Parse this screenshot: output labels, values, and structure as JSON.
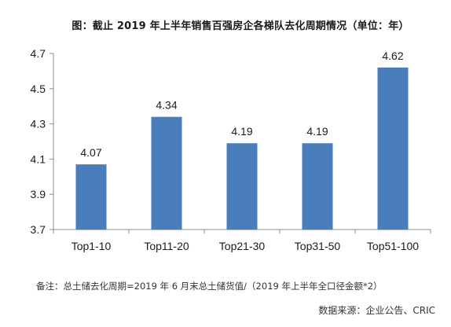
{
  "chart_data": {
    "type": "bar",
    "title": "图：截止 2019 年上半年销售百强房企各梯队去化周期情况（单位：年）",
    "categories": [
      "Top1-10",
      "Top11-20",
      "Top21-30",
      "Top31-50",
      "Top51-100"
    ],
    "values": [
      4.07,
      4.34,
      4.19,
      4.19,
      4.62
    ],
    "data_labels": [
      "4.07",
      "4.34",
      "4.19",
      "4.19",
      "4.62"
    ],
    "ylim": [
      3.7,
      4.7
    ],
    "yticks": [
      "3.7",
      "3.9",
      "4.1",
      "4.3",
      "4.5",
      "4.7"
    ],
    "xlabel": "",
    "ylabel": "",
    "grid": false,
    "bar_color": "#4a7ebb"
  },
  "footer": {
    "note": "备注：总土储去化周期=2019 年 6 月末总土储货值/（2019 年上半年全口径金额*2）",
    "source": "数据来源：企业公告、CRIC"
  }
}
